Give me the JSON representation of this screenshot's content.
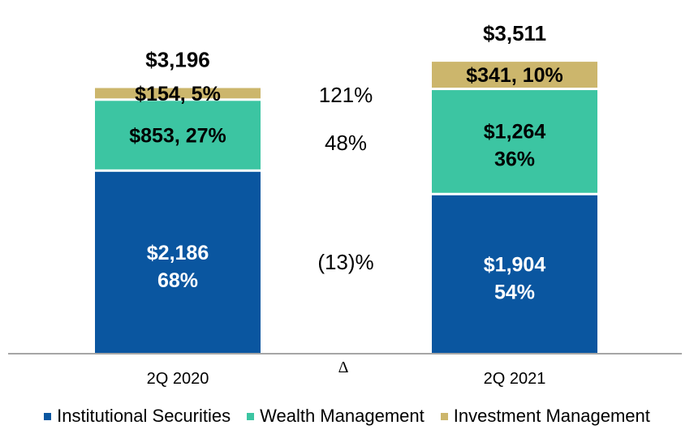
{
  "chart_data": {
    "type": "bar",
    "stacked": true,
    "categories": [
      "2Q 2020",
      "2Q 2021"
    ],
    "series": [
      {
        "name": "Institutional Securities",
        "color": "#0A56A0",
        "values": [
          2186,
          1904
        ],
        "labels": [
          "$2,186",
          "$1,904"
        ],
        "percents": [
          "68%",
          "54%"
        ],
        "label_color": "#ffffff"
      },
      {
        "name": "Wealth Management",
        "color": "#3CC5A2",
        "values": [
          853,
          1264
        ],
        "labels": [
          "$853",
          "$1,264"
        ],
        "percents": [
          "27%",
          "36%"
        ],
        "label_color": "#000000"
      },
      {
        "name": "Investment Management",
        "color": "#CCB66C",
        "values": [
          154,
          341
        ],
        "labels": [
          "$154",
          "$341"
        ],
        "percents": [
          "5%",
          "10%"
        ],
        "label_color": "#000000"
      }
    ],
    "totals": [
      "$3,196",
      "$3,511"
    ],
    "deltas": [
      "(13)%",
      "48%",
      "121%"
    ],
    "delta_symbol": "Δ",
    "ylim": [
      0,
      3900
    ],
    "grid": false,
    "legend_position": "bottom"
  }
}
